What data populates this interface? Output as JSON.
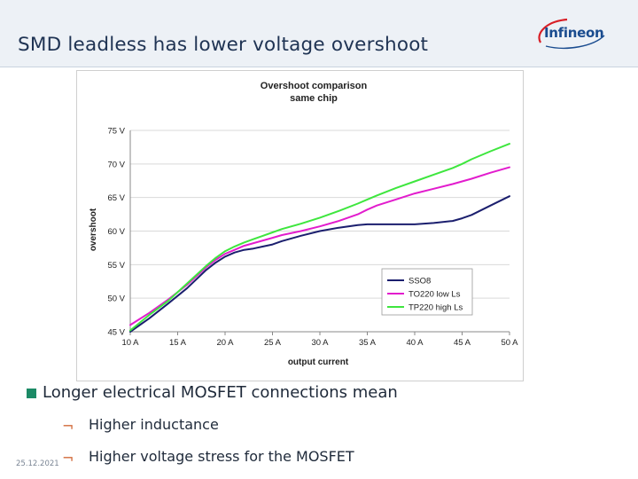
{
  "slide": {
    "title": "SMD leadless has lower voltage overshoot",
    "logo_text": "Infineon",
    "date": "25.12.2021"
  },
  "bullets": {
    "main": "Longer electrical MOSFET connections mean",
    "subs": [
      "Higher inductance",
      "Higher voltage stress for the MOSFET"
    ],
    "sub_marker": "¬"
  },
  "colors": {
    "bullet": "#1c8a66",
    "sub_marker": "#d26a3a",
    "title": "#1f3353",
    "logo": "#1a4c8f"
  },
  "chart_data": {
    "type": "line",
    "title": "Overshoot comparison",
    "subtitle": "same chip",
    "xlabel": "output current",
    "ylabel": "overshoot",
    "x_unit": "A",
    "y_unit": "V",
    "xlim": [
      10,
      50
    ],
    "ylim": [
      45,
      75
    ],
    "x_ticks": [
      "10 A",
      "15 A",
      "20 A",
      "25 A",
      "30 A",
      "35 A",
      "40 A",
      "45 A",
      "50 A"
    ],
    "y_ticks": [
      "45 V",
      "50 V",
      "55 V",
      "60 V",
      "65 V",
      "70 V",
      "75 V"
    ],
    "grid": "horizontal",
    "legend_position": "bottom-right",
    "x": [
      10,
      12,
      14,
      16,
      18,
      19,
      20,
      21,
      22,
      23,
      24,
      25,
      26,
      28,
      30,
      32,
      34,
      35,
      36,
      38,
      40,
      42,
      44,
      45,
      46,
      48,
      50
    ],
    "series": [
      {
        "name": "SSO8",
        "color": "#1b1f6e",
        "values": [
          45.0,
          47.0,
          49.2,
          51.5,
          54.2,
          55.3,
          56.2,
          56.8,
          57.2,
          57.4,
          57.7,
          58.0,
          58.5,
          59.3,
          60.0,
          60.5,
          60.9,
          61.0,
          61.0,
          61.0,
          61.0,
          61.2,
          61.5,
          61.9,
          62.4,
          63.8,
          65.2
        ]
      },
      {
        "name": "TO220 low Ls",
        "color": "#e21ccd",
        "values": [
          46.0,
          47.8,
          49.8,
          52.0,
          54.6,
          55.7,
          56.6,
          57.2,
          57.8,
          58.2,
          58.6,
          59.0,
          59.4,
          60.0,
          60.7,
          61.5,
          62.5,
          63.2,
          63.8,
          64.7,
          65.6,
          66.3,
          67.0,
          67.4,
          67.8,
          68.7,
          69.5
        ]
      },
      {
        "name": "TP220 high Ls",
        "color": "#3ee63e",
        "values": [
          45.2,
          47.5,
          49.6,
          52.2,
          54.8,
          56.0,
          57.0,
          57.7,
          58.3,
          58.8,
          59.3,
          59.8,
          60.3,
          61.1,
          62.0,
          63.0,
          64.1,
          64.7,
          65.3,
          66.4,
          67.4,
          68.4,
          69.4,
          70.0,
          70.7,
          71.9,
          73.0
        ]
      }
    ]
  }
}
